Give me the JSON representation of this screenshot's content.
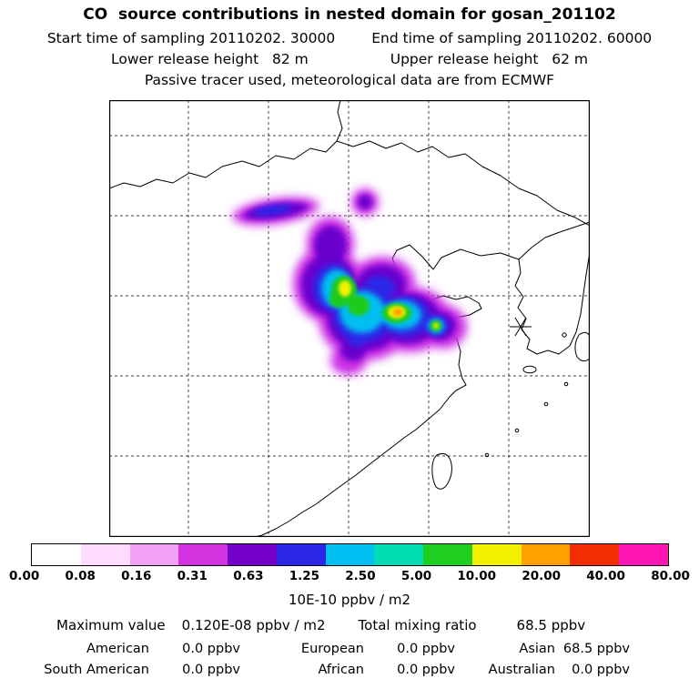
{
  "header": {
    "title": "CO  source contributions in nested domain for gosan_201102",
    "start_time": "Start time of sampling 20110202. 30000",
    "end_time": "End time of sampling 20110202. 60000",
    "lower_release": "Lower release height   82 m",
    "upper_release": "Upper release height   62 m",
    "tracer_info": "Passive tracer used, meteorological data are from ECMWF"
  },
  "map": {
    "receptor_marker": "gosan receptor site asterisk"
  },
  "colorbar": {
    "ticks": [
      "0.00",
      "0.08",
      "0.16",
      "0.31",
      "0.63",
      "1.25",
      "2.50",
      "5.00",
      "10.00",
      "20.00",
      "40.00",
      "80.00"
    ],
    "colors": [
      "#ffffff",
      "#ffdcff",
      "#f0a0f5",
      "#d235e0",
      "#7300c8",
      "#2a28e6",
      "#00bef0",
      "#00dcb4",
      "#1fcf1f",
      "#f2f200",
      "#ffa000",
      "#f42d00",
      "#ff14b4"
    ],
    "units_label": "10E-10 ppbv / m2"
  },
  "stats": {
    "max_label": "Maximum value",
    "max_value": "0.120E-08 ppbv / m2",
    "total_label": "Total mixing ratio",
    "total_value": "68.5 ppbv",
    "regions": [
      {
        "label": "American",
        "value": "0.0 ppbv"
      },
      {
        "label": "European",
        "value": "0.0 ppbv"
      },
      {
        "label": "Asian",
        "value": "68.5 ppbv"
      },
      {
        "label": "South American",
        "value": "0.0 ppbv"
      },
      {
        "label": "African",
        "value": "0.0 ppbv"
      },
      {
        "label": "Australian",
        "value": "0.0 ppbv"
      }
    ]
  },
  "chart_data": {
    "type": "heatmap",
    "title": "CO source contributions in nested domain for gosan_201102",
    "subtitle": [
      "Start time of sampling 20110202. 30000",
      "End time of sampling 20110202. 60000",
      "Lower release height 82 m",
      "Upper release height 62 m",
      "Passive tracer used, meteorological data are from ECMWF"
    ],
    "units": "10E-10 ppbv / m2",
    "colorbar_levels": [
      0.0,
      0.08,
      0.16,
      0.31,
      0.63,
      1.25,
      2.5,
      5.0,
      10.0,
      20.0,
      40.0,
      80.0
    ],
    "colorbar_colors": [
      "#ffffff",
      "#ffdcff",
      "#f0a0f5",
      "#d235e0",
      "#7300c8",
      "#2a28e6",
      "#00bef0",
      "#00dcb4",
      "#1fcf1f",
      "#f2f200",
      "#ffa000",
      "#f42d00",
      "#ff14b4"
    ],
    "max_value_ppbv_per_m2": "0.120E-08",
    "total_mixing_ratio_ppbv": 68.5,
    "region_contributions_ppbv": {
      "American": 0.0,
      "European": 0.0,
      "Asian": 68.5,
      "South American": 0.0,
      "African": 0.0,
      "Australian": 0.0
    },
    "receptor": "gosan_201102",
    "plume": "CO source-contribution plume over eastern China: violet outer contour, purple/blue/cyan rings, green-yellow patches, orange core (~10-20 units) near the Yellow Sea coast; separate violet arm to the northwest; receptor marked with an asterisk near southwest Korea",
    "legend_position": "bottom horizontal colorbar",
    "grid": "dashed latitude/longitude grid over East Asia coastline map"
  }
}
